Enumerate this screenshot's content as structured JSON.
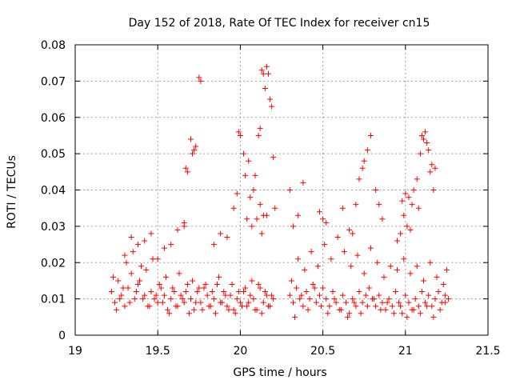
{
  "chart_data": {
    "type": "scatter",
    "title": "Day 152 of 2018, Rate Of TEC Index for receiver cn15",
    "xlabel": "GPS time / hours",
    "ylabel": "ROTI / TECUs",
    "xlim": [
      19,
      21.5
    ],
    "ylim": [
      0,
      0.08
    ],
    "grid": true,
    "marker": "+",
    "color": "#ff0000",
    "x_ticks": [
      {
        "value": 19,
        "label": "19"
      },
      {
        "value": 19.5,
        "label": "19.5"
      },
      {
        "value": 20,
        "label": "20"
      },
      {
        "value": 20.5,
        "label": "20.5"
      },
      {
        "value": 21,
        "label": "21"
      },
      {
        "value": 21.5,
        "label": "21.5"
      }
    ],
    "y_ticks": [
      {
        "value": 0,
        "label": "0"
      },
      {
        "value": 0.01,
        "label": "0.01"
      },
      {
        "value": 0.02,
        "label": "0.02"
      },
      {
        "value": 0.03,
        "label": "0.03"
      },
      {
        "value": 0.04,
        "label": "0.04"
      },
      {
        "value": 0.05,
        "label": "0.05"
      },
      {
        "value": 0.06,
        "label": "0.06"
      },
      {
        "value": 0.07,
        "label": "0.07"
      },
      {
        "value": 0.08,
        "label": "0.08"
      }
    ],
    "series": [
      {
        "name": "ROTI",
        "x": [
          19.22,
          19.24,
          19.26,
          19.28,
          19.3,
          19.32,
          19.34,
          19.36,
          19.38,
          19.4,
          19.42,
          19.44,
          19.46,
          19.48,
          19.5,
          19.52,
          19.54,
          19.56,
          19.58,
          19.6,
          19.62,
          19.64,
          19.66,
          19.68,
          19.7,
          19.72,
          19.74,
          19.76,
          19.78,
          19.8,
          19.82,
          19.84,
          19.86,
          19.88,
          19.9,
          19.92,
          19.94,
          19.96,
          19.98,
          20.0,
          20.02,
          20.04,
          20.06,
          20.08,
          20.1,
          20.12,
          20.14,
          20.16,
          20.18,
          20.2,
          19.23,
          19.27,
          19.31,
          19.35,
          19.39,
          19.43,
          19.47,
          19.51,
          19.55,
          19.59,
          19.63,
          19.67,
          19.71,
          19.75,
          19.79,
          19.83,
          19.87,
          19.91,
          19.95,
          19.99,
          20.03,
          20.07,
          20.11,
          20.15,
          20.19,
          19.25,
          19.29,
          19.33,
          19.37,
          19.41,
          19.45,
          19.49,
          19.53,
          19.57,
          19.61,
          19.65,
          19.69,
          19.73,
          19.77,
          19.81,
          19.85,
          19.89,
          19.93,
          19.97,
          20.01,
          20.05,
          20.09,
          20.13,
          20.17,
          19.3,
          19.34,
          19.38,
          19.42,
          19.46,
          19.5,
          19.54,
          19.58,
          19.62,
          19.66,
          19.68,
          19.7,
          19.72,
          19.75,
          19.76,
          19.66,
          19.67,
          19.71,
          19.73,
          19.84,
          19.88,
          19.92,
          19.96,
          19.98,
          19.99,
          20.0,
          20.02,
          20.03,
          20.05,
          20.06,
          20.08,
          20.09,
          20.11,
          20.12,
          20.13,
          20.14,
          20.15,
          20.16,
          20.17,
          20.18,
          20.19,
          20.2,
          20.21,
          20.1,
          20.12,
          20.14,
          20.16,
          20.04,
          20.07,
          20.13,
          20.3,
          20.32,
          20.34,
          20.36,
          20.38,
          20.4,
          20.42,
          20.44,
          20.46,
          20.48,
          20.5,
          20.52,
          20.54,
          20.56,
          20.58,
          20.6,
          20.62,
          20.64,
          20.66,
          20.68,
          20.7,
          20.72,
          20.74,
          20.76,
          20.78,
          20.8,
          20.82,
          20.84,
          20.86,
          20.88,
          20.9,
          20.92,
          20.94,
          20.96,
          20.98,
          21.0,
          21.02,
          21.04,
          21.06,
          21.08,
          21.1,
          21.12,
          21.14,
          21.16,
          21.18,
          21.2,
          21.22,
          21.24,
          21.26,
          20.31,
          20.35,
          20.39,
          20.43,
          20.47,
          20.51,
          20.55,
          20.59,
          20.63,
          20.67,
          20.71,
          20.75,
          20.79,
          20.83,
          20.87,
          20.91,
          20.95,
          20.99,
          21.03,
          21.07,
          21.11,
          21.15,
          21.19,
          21.23,
          21.25,
          20.33,
          20.37,
          20.41,
          20.45,
          20.49,
          20.53,
          20.57,
          20.61,
          20.65,
          20.69,
          20.73,
          20.77,
          20.81,
          20.85,
          20.89,
          20.93,
          20.97,
          21.01,
          21.05,
          21.09,
          21.13,
          21.17,
          21.21,
          21.24,
          20.3,
          20.32,
          20.35,
          20.38,
          20.48,
          20.5,
          20.52,
          20.62,
          20.66,
          20.68,
          20.7,
          20.72,
          20.74,
          20.75,
          20.77,
          20.79,
          20.82,
          20.84,
          20.86,
          20.95,
          20.97,
          20.98,
          21.0,
          21.02,
          21.04,
          21.05,
          21.07,
          21.08,
          21.09,
          21.1,
          21.11,
          21.12,
          21.13,
          21.14,
          21.15,
          21.16,
          21.17,
          21.18,
          21.03,
          21.01,
          20.99
        ],
        "y": [
          0.012,
          0.009,
          0.015,
          0.011,
          0.008,
          0.013,
          0.017,
          0.01,
          0.014,
          0.019,
          0.011,
          0.008,
          0.012,
          0.01,
          0.009,
          0.013,
          0.011,
          0.007,
          0.01,
          0.012,
          0.008,
          0.011,
          0.009,
          0.014,
          0.01,
          0.007,
          0.012,
          0.009,
          0.013,
          0.011,
          0.008,
          0.01,
          0.014,
          0.009,
          0.012,
          0.008,
          0.011,
          0.007,
          0.01,
          0.009,
          0.012,
          0.008,
          0.011,
          0.01,
          0.007,
          0.013,
          0.009,
          0.011,
          0.008,
          0.01,
          0.016,
          0.01,
          0.02,
          0.023,
          0.015,
          0.018,
          0.021,
          0.014,
          0.016,
          0.013,
          0.017,
          0.012,
          0.015,
          0.013,
          0.014,
          0.012,
          0.016,
          0.011,
          0.014,
          0.012,
          0.013,
          0.015,
          0.014,
          0.012,
          0.011,
          0.007,
          0.013,
          0.009,
          0.012,
          0.01,
          0.008,
          0.011,
          0.009,
          0.006,
          0.008,
          0.01,
          0.006,
          0.009,
          0.007,
          0.008,
          0.006,
          0.009,
          0.007,
          0.006,
          0.008,
          0.009,
          0.007,
          0.006,
          0.008,
          0.022,
          0.027,
          0.025,
          0.026,
          0.028,
          0.021,
          0.024,
          0.025,
          0.029,
          0.031,
          0.045,
          0.054,
          0.051,
          0.071,
          0.07,
          0.03,
          0.046,
          0.05,
          0.052,
          0.025,
          0.028,
          0.027,
          0.035,
          0.039,
          0.056,
          0.055,
          0.05,
          0.044,
          0.048,
          0.038,
          0.04,
          0.044,
          0.055,
          0.057,
          0.073,
          0.072,
          0.068,
          0.074,
          0.072,
          0.065,
          0.063,
          0.049,
          0.035,
          0.032,
          0.036,
          0.033,
          0.033,
          0.032,
          0.03,
          0.028,
          0.011,
          0.009,
          0.013,
          0.01,
          0.008,
          0.012,
          0.01,
          0.014,
          0.009,
          0.011,
          0.013,
          0.01,
          0.008,
          0.012,
          0.009,
          0.007,
          0.011,
          0.009,
          0.006,
          0.01,
          0.008,
          0.012,
          0.009,
          0.011,
          0.013,
          0.01,
          0.008,
          0.011,
          0.009,
          0.007,
          0.01,
          0.008,
          0.012,
          0.009,
          0.006,
          0.011,
          0.009,
          0.007,
          0.01,
          0.008,
          0.012,
          0.009,
          0.011,
          0.008,
          0.01,
          0.012,
          0.009,
          0.011,
          0.01,
          0.015,
          0.021,
          0.018,
          0.023,
          0.019,
          0.025,
          0.021,
          0.027,
          0.023,
          0.019,
          0.022,
          0.017,
          0.024,
          0.02,
          0.016,
          0.019,
          0.018,
          0.021,
          0.017,
          0.019,
          0.015,
          0.02,
          0.016,
          0.014,
          0.018,
          0.005,
          0.011,
          0.007,
          0.013,
          0.008,
          0.006,
          0.01,
          0.007,
          0.005,
          0.009,
          0.006,
          0.008,
          0.01,
          0.007,
          0.009,
          0.006,
          0.008,
          0.005,
          0.007,
          0.006,
          0.008,
          0.005,
          0.007,
          0.009,
          0.04,
          0.03,
          0.033,
          0.042,
          0.034,
          0.032,
          0.031,
          0.035,
          0.029,
          0.028,
          0.036,
          0.043,
          0.046,
          0.048,
          0.051,
          0.055,
          0.04,
          0.036,
          0.032,
          0.026,
          0.028,
          0.037,
          0.039,
          0.038,
          0.036,
          0.04,
          0.043,
          0.035,
          0.05,
          0.055,
          0.054,
          0.056,
          0.053,
          0.051,
          0.045,
          0.047,
          0.04,
          0.046,
          0.029,
          0.03,
          0.033
        ]
      }
    ]
  }
}
